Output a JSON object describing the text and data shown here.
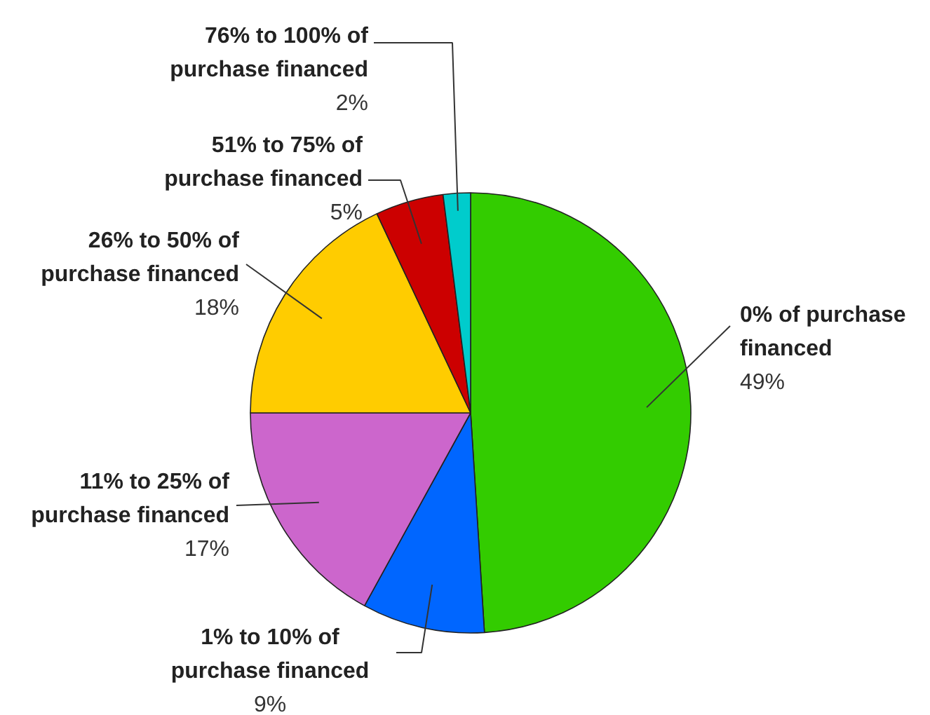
{
  "chart_data": {
    "type": "pie",
    "categories": [
      "0% of purchase financed",
      "1% to 10% of purchase financed",
      "11% to 25% of purchase financed",
      "26% to 50% of purchase financed",
      "51% to 75% of purchase financed",
      "76% to 100% of purchase financed"
    ],
    "values": [
      49,
      9,
      17,
      18,
      5,
      2
    ],
    "colors": [
      "#33cc00",
      "#0066ff",
      "#cc66cc",
      "#ffcc00",
      "#cc0000",
      "#00cccc"
    ],
    "value_labels": [
      "49%",
      "9%",
      "17%",
      "18%",
      "5%",
      "2%"
    ]
  }
}
